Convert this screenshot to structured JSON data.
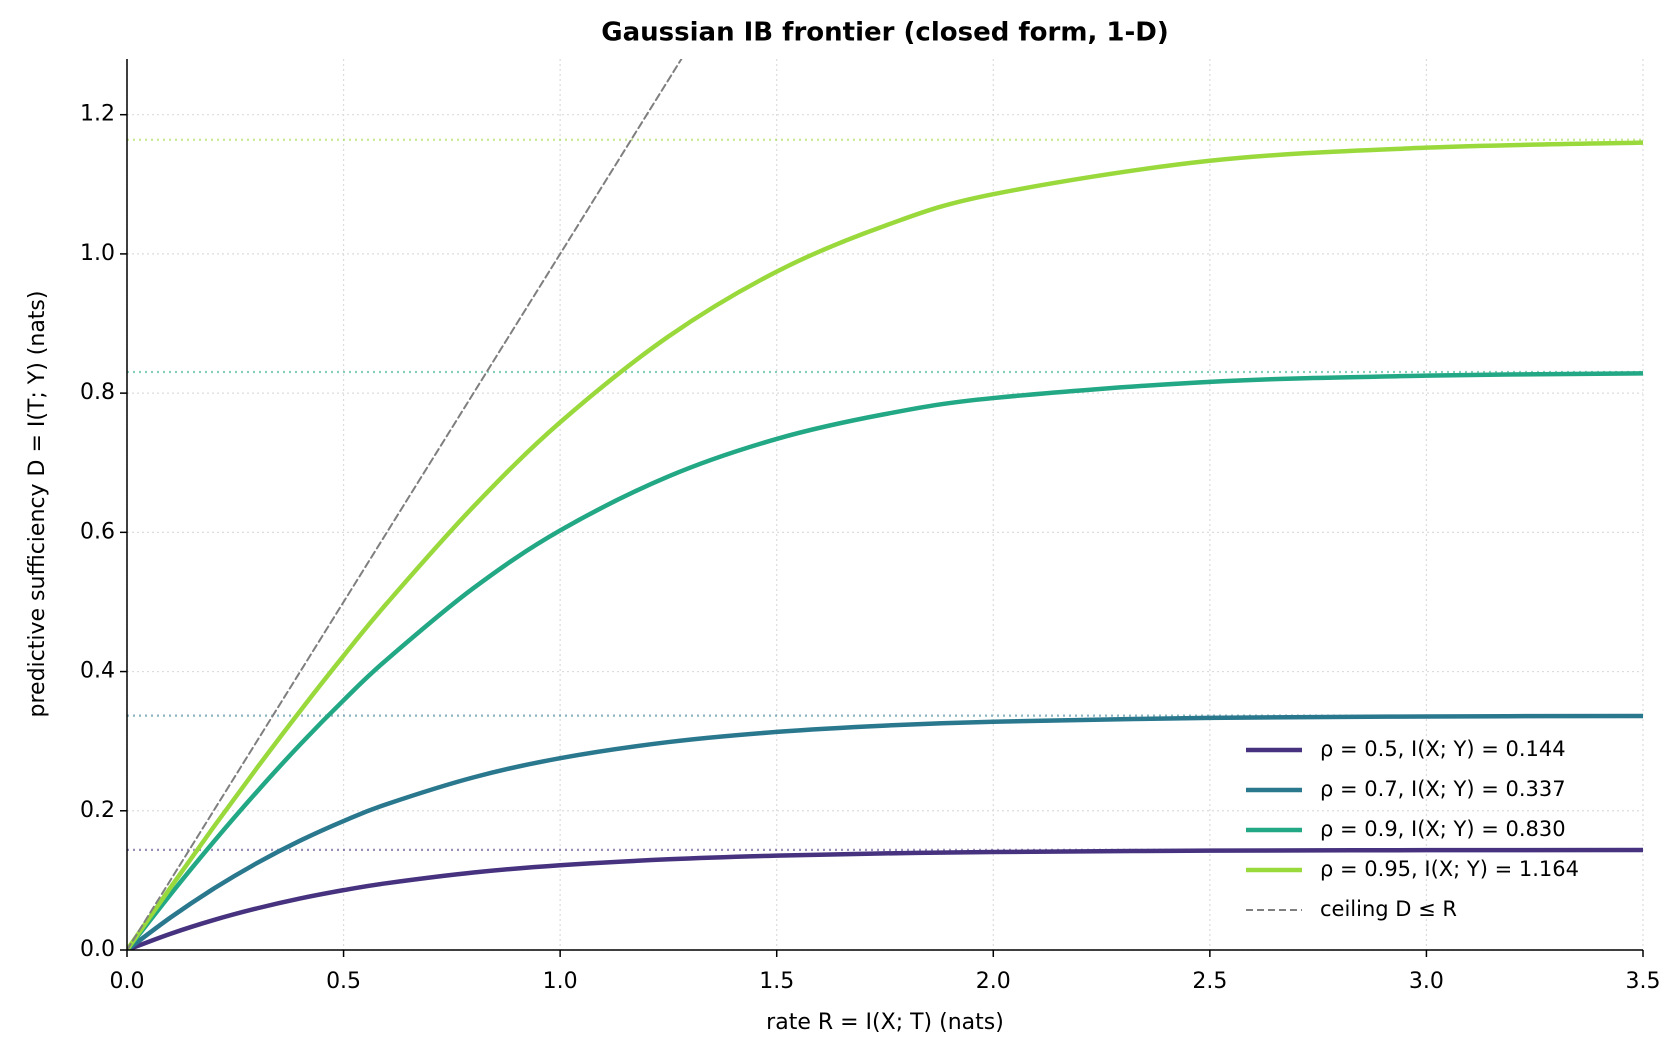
{
  "chart_data": {
    "type": "line",
    "title": "Gaussian IB frontier (closed form, 1-D)",
    "x_label": "rate   R = I(X; T)  (nats)",
    "y_label": "predictive sufficiency   D = I(T; Y)  (nats)",
    "x": [
      0,
      0.1,
      0.2,
      0.3,
      0.4,
      0.5,
      0.6,
      0.8,
      1.0,
      1.25,
      1.5,
      1.75,
      2.0,
      2.5,
      3.0,
      3.5
    ],
    "series": [
      {
        "name": "ρ = 0.5,  I(X; Y) = 0.144",
        "color": "#46327e",
        "asymptote": 0.1438,
        "values": [
          0,
          0.0232,
          0.043,
          0.0598,
          0.0741,
          0.086,
          0.096,
          0.1113,
          0.1218,
          0.1303,
          0.1356,
          0.1388,
          0.1408,
          0.1427,
          0.1434,
          0.1437
        ]
      },
      {
        "name": "ρ = 0.7,  I(X; Y) = 0.337",
        "color": "#2a788e",
        "asymptote": 0.3367,
        "values": [
          0,
          0.0465,
          0.0881,
          0.1249,
          0.1572,
          0.1853,
          0.2096,
          0.248,
          0.2756,
          0.2987,
          0.3133,
          0.3224,
          0.3279,
          0.3335,
          0.3355,
          0.3362
        ]
      },
      {
        "name": "ρ = 0.9,  I(X; Y) = 0.830",
        "color": "#22a884",
        "asymptote": 0.8304,
        "values": [
          0,
          0.0795,
          0.1554,
          0.2274,
          0.2954,
          0.3587,
          0.4173,
          0.5199,
          0.6027,
          0.6803,
          0.7342,
          0.7698,
          0.7929,
          0.8162,
          0.8251,
          0.8284
        ]
      },
      {
        "name": "ρ = 0.95,  I(X; Y) = 1.164",
        "color": "#9ad93c",
        "asymptote": 1.164,
        "values": [
          0,
          0.0893,
          0.1767,
          0.2615,
          0.3436,
          0.4226,
          0.4981,
          0.637,
          0.758,
          0.8813,
          0.9746,
          1.0405,
          1.0858,
          1.1338,
          1.1526,
          1.1598
        ]
      },
      {
        "name": "ceiling D ≤ R",
        "color": "#7f7f7f",
        "dashed": true,
        "x": [
          0,
          1.28
        ],
        "values": [
          0,
          1.28
        ]
      }
    ],
    "xlim": [
      0,
      3.5
    ],
    "ylim": [
      0,
      1.28
    ],
    "xticks": [
      {
        "value": 0,
        "label": "0.0"
      },
      0.5,
      {
        "value": 1,
        "label": "1.0"
      },
      1.5,
      {
        "value": 2,
        "label": "2.0"
      },
      2.5,
      {
        "value": 3,
        "label": "3.0"
      },
      3.5
    ],
    "yticks": [
      {
        "value": 0,
        "label": "0.0"
      },
      0.2,
      0.4,
      0.6,
      0.8,
      {
        "value": 1,
        "label": "1.0"
      },
      1.2
    ],
    "grid": true,
    "legend": "lower right"
  }
}
